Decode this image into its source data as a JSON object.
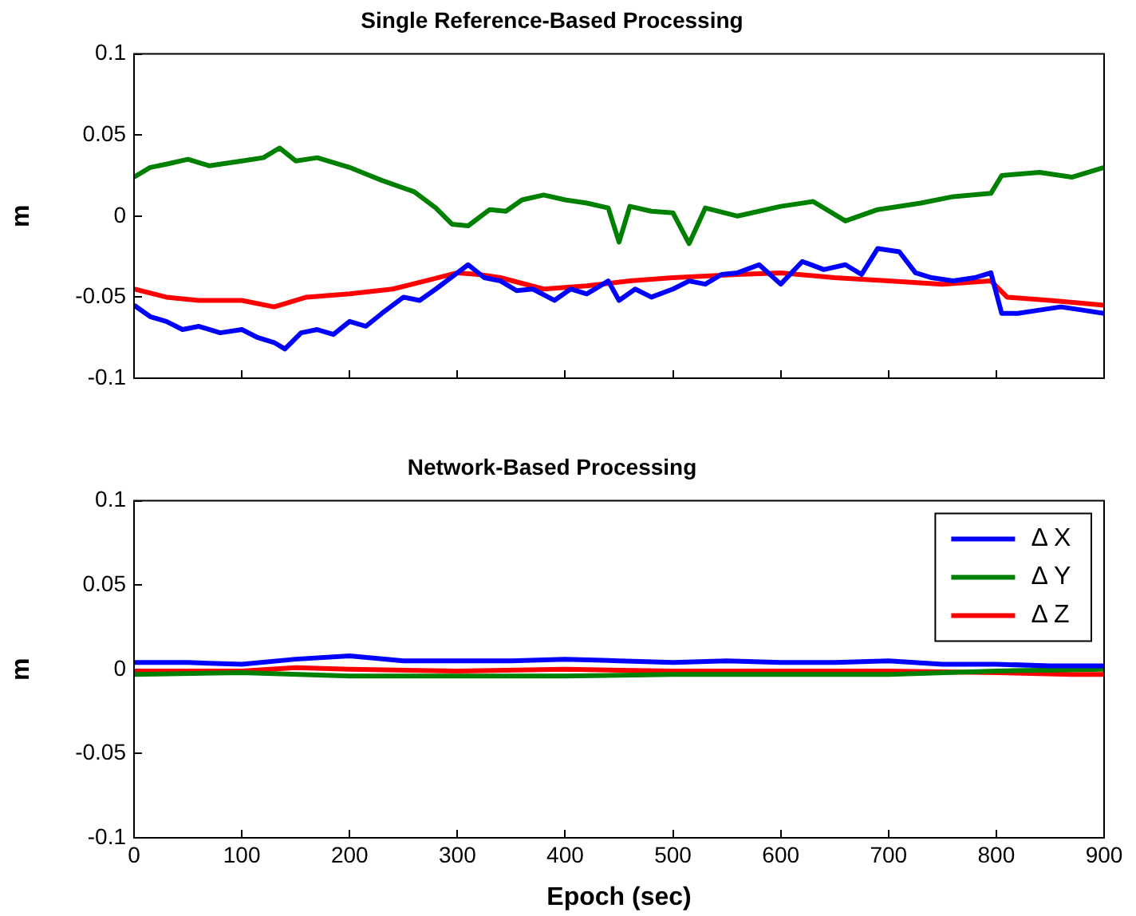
{
  "chart_data": [
    {
      "type": "line",
      "title": "Single Reference-Based Processing",
      "ylabel": "m",
      "xlim": [
        0,
        900
      ],
      "xticks": [
        0,
        100,
        200,
        300,
        400,
        500,
        600,
        700,
        800,
        900
      ],
      "ylim": [
        -0.1,
        0.1
      ],
      "yticks": [
        -0.1,
        -0.05,
        0,
        0.05,
        0.1
      ],
      "tick_labels": "y",
      "grid": false,
      "marker": "none",
      "line_style": "solid",
      "series": [
        {
          "color": "#0000ff",
          "x": [
            0,
            15,
            30,
            45,
            60,
            80,
            100,
            115,
            130,
            140,
            155,
            170,
            185,
            200,
            215,
            230,
            250,
            265,
            280,
            300,
            310,
            325,
            340,
            355,
            370,
            390,
            405,
            420,
            440,
            450,
            465,
            480,
            500,
            515,
            530,
            545,
            560,
            580,
            600,
            620,
            640,
            660,
            675,
            690,
            710,
            725,
            740,
            760,
            780,
            795,
            805,
            820,
            840,
            860,
            880,
            900
          ],
          "values": [
            -0.055,
            -0.062,
            -0.065,
            -0.07,
            -0.068,
            -0.072,
            -0.07,
            -0.075,
            -0.078,
            -0.082,
            -0.072,
            -0.07,
            -0.073,
            -0.065,
            -0.068,
            -0.06,
            -0.05,
            -0.052,
            -0.045,
            -0.035,
            -0.03,
            -0.038,
            -0.04,
            -0.046,
            -0.045,
            -0.052,
            -0.045,
            -0.048,
            -0.04,
            -0.052,
            -0.045,
            -0.05,
            -0.045,
            -0.04,
            -0.042,
            -0.036,
            -0.035,
            -0.03,
            -0.042,
            -0.028,
            -0.033,
            -0.03,
            -0.036,
            -0.02,
            -0.022,
            -0.035,
            -0.038,
            -0.04,
            -0.038,
            -0.035,
            -0.06,
            -0.06,
            -0.058,
            -0.056,
            -0.058,
            -0.06
          ]
        },
        {
          "color": "#008000",
          "x": [
            0,
            15,
            30,
            50,
            70,
            100,
            120,
            135,
            150,
            170,
            200,
            215,
            230,
            260,
            280,
            295,
            310,
            330,
            345,
            360,
            380,
            400,
            420,
            440,
            450,
            460,
            480,
            500,
            515,
            530,
            560,
            600,
            630,
            660,
            690,
            730,
            760,
            795,
            805,
            840,
            870,
            900
          ],
          "values": [
            0.024,
            0.03,
            0.032,
            0.035,
            0.031,
            0.034,
            0.036,
            0.042,
            0.034,
            0.036,
            0.03,
            0.026,
            0.022,
            0.015,
            0.005,
            -0.005,
            -0.006,
            0.004,
            0.003,
            0.01,
            0.013,
            0.01,
            0.008,
            0.005,
            -0.016,
            0.006,
            0.003,
            0.002,
            -0.017,
            0.005,
            0.0,
            0.006,
            0.009,
            -0.003,
            0.004,
            0.008,
            0.012,
            0.014,
            0.025,
            0.027,
            0.024,
            0.03
          ]
        },
        {
          "color": "#ff0000",
          "x": [
            0,
            30,
            60,
            100,
            130,
            160,
            200,
            240,
            270,
            300,
            320,
            340,
            380,
            420,
            460,
            500,
            530,
            560,
            600,
            650,
            700,
            750,
            795,
            810,
            850,
            900
          ],
          "values": [
            -0.045,
            -0.05,
            -0.052,
            -0.052,
            -0.056,
            -0.05,
            -0.048,
            -0.045,
            -0.04,
            -0.035,
            -0.036,
            -0.038,
            -0.045,
            -0.043,
            -0.04,
            -0.038,
            -0.037,
            -0.036,
            -0.035,
            -0.038,
            -0.04,
            -0.042,
            -0.04,
            -0.05,
            -0.052,
            -0.055
          ]
        }
      ]
    },
    {
      "type": "line",
      "title": "Network-Based Processing",
      "xlabel": "Epoch (sec)",
      "ylabel": "m",
      "xlim": [
        0,
        900
      ],
      "xticks": [
        0,
        100,
        200,
        300,
        400,
        500,
        600,
        700,
        800,
        900
      ],
      "ylim": [
        -0.1,
        0.1
      ],
      "yticks": [
        -0.1,
        -0.05,
        0,
        0.05,
        0.1
      ],
      "grid": false,
      "marker": "none",
      "line_style": "solid",
      "legend": "top right",
      "series": [
        {
          "name": "Δ X",
          "color": "#0000ff",
          "x": [
            0,
            50,
            100,
            150,
            200,
            250,
            300,
            350,
            400,
            450,
            500,
            550,
            600,
            650,
            700,
            750,
            800,
            850,
            900
          ],
          "values": [
            0.004,
            0.004,
            0.003,
            0.006,
            0.008,
            0.005,
            0.005,
            0.005,
            0.006,
            0.005,
            0.004,
            0.005,
            0.004,
            0.004,
            0.005,
            0.003,
            0.003,
            0.002,
            0.002
          ]
        },
        {
          "name": "Δ Y",
          "color": "#008000",
          "x": [
            0,
            100,
            200,
            300,
            400,
            500,
            600,
            700,
            800,
            900
          ],
          "values": [
            -0.003,
            -0.002,
            -0.004,
            -0.004,
            -0.004,
            -0.003,
            -0.003,
            -0.003,
            -0.001,
            0.0
          ]
        },
        {
          "name": "Δ Z",
          "color": "#ff0000",
          "x": [
            0,
            100,
            150,
            200,
            300,
            400,
            500,
            600,
            700,
            800,
            870,
            900
          ],
          "values": [
            -0.001,
            -0.001,
            0.001,
            0.0,
            -0.001,
            0.0,
            -0.001,
            -0.001,
            -0.001,
            -0.002,
            -0.003,
            -0.003
          ]
        }
      ]
    }
  ]
}
